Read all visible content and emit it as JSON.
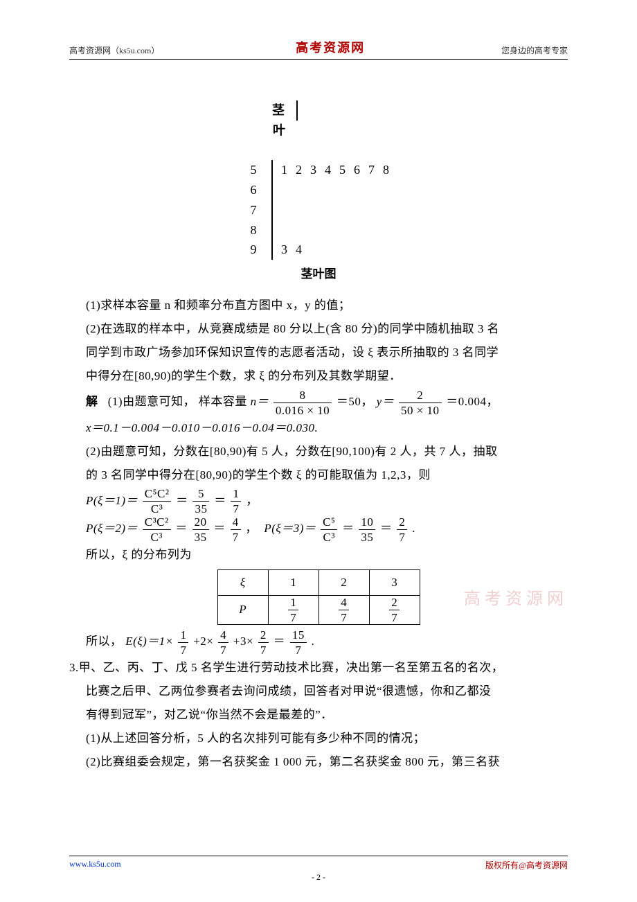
{
  "header": {
    "left": "高考资源网（ks5u.com）",
    "center": "高考资源网",
    "right": "您身边的高考专家"
  },
  "stemleaf": {
    "header_stem": "茎",
    "header_leaf": "叶",
    "rows": [
      {
        "stem": "5",
        "leaves": "12345678"
      },
      {
        "stem": "6",
        "leaves": ""
      },
      {
        "stem": "7",
        "leaves": ""
      },
      {
        "stem": "8",
        "leaves": ""
      },
      {
        "stem": "9",
        "leaves": "34"
      }
    ],
    "caption": "茎叶图"
  },
  "body": {
    "p1": "(1)求样本容量 n 和频率分布直方图中 x，y 的值；",
    "p2a": "(2)在选取的样本中，从竞赛成绩是 80 分以上(含 80 分)的同学中随机抽取 3 名",
    "p2b": "同学到市政广场参加环保知识宣传的志愿者活动，设 ξ 表示所抽取的 3 名同学",
    "p2c": "中得分在[80,90)的学生个数，求 ξ 的分布列及其数学期望．",
    "sol_label": "解",
    "sol1_pre": "(1)由题意可知，  样本容量 ",
    "n_eq": "n＝",
    "frac_n": {
      "num": "8",
      "den": "0.016 × 10"
    },
    "eq50": "＝50，",
    "y_eq": "y＝",
    "frac_y": {
      "num": "2",
      "den": "50 × 10"
    },
    "eq_y": "＝0.004，",
    "sol1_x": "x＝0.1－0.004－0.010－0.016－0.04＝0.030.",
    "sol2a": "(2)由题意可知，分数在[80,90)有 5 人，分数在[90,100)有 2 人，共 7 人，抽取",
    "sol2b": "的 3 名同学中得分在[80,90)的学生个数 ξ 的可能取值为 1,2,3，则",
    "P1_lhs": "P(ξ＝1)＝",
    "P1_f1": {
      "num": "C⁵C²",
      "den": "C³"
    },
    "P1_mid": "＝",
    "P1_f2": {
      "num": "5",
      "den": "35"
    },
    "P1_f3": {
      "num": "1",
      "den": "7"
    },
    "P1_end": "，",
    "P2_lhs": "P(ξ＝2)＝",
    "P2_f1": {
      "num": "C³C²",
      "den": "C³"
    },
    "P2_f2": {
      "num": "20",
      "den": "35"
    },
    "P2_f3": {
      "num": "4",
      "den": "7"
    },
    "P2_comma": "，",
    "P3_lhs": "P(ξ＝3)＝",
    "P3_f1": {
      "num": "C⁵",
      "den": "C³"
    },
    "P3_f2": {
      "num": "10",
      "den": "35"
    },
    "P3_f3": {
      "num": "2",
      "den": "7"
    },
    "P3_end": ".",
    "so_dist": "所以，ξ 的分布列为",
    "dist_header": [
      "ξ",
      "1",
      "2",
      "3"
    ],
    "dist_probs": [
      {
        "num": "1",
        "den": "7"
      },
      {
        "num": "4",
        "den": "7"
      },
      {
        "num": "2",
        "den": "7"
      }
    ],
    "dist_row_label": "P",
    "so_E_pre": "所以，",
    "E_lhs": "E(ξ)＝1×",
    "E_f1": {
      "num": "1",
      "den": "7"
    },
    "E_p2": "+2×",
    "E_f2": {
      "num": "4",
      "den": "7"
    },
    "E_p3": "+3×",
    "E_f3": {
      "num": "2",
      "den": "7"
    },
    "E_eq": "＝",
    "E_f4": {
      "num": "15",
      "den": "7"
    },
    "E_end": ".",
    "q3_num": "3.",
    "q3a": "甲、乙、丙、丁、戊 5 名学生进行劳动技术比赛，决出第一名至第五名的名次，",
    "q3b": "比赛之后甲、乙两位参赛者去询问成绩，回答者对甲说“很遗憾，你和乙都没",
    "q3c": "有得到冠军”，对乙说“你当然不会是最差的”．",
    "q3_1": "(1)从上述回答分析，5 人的名次排列可能有多少种不同的情况；",
    "q3_2": "(2)比赛组委会规定，第一名获奖金 1 000 元，第二名获奖金 800 元，第三名获"
  },
  "watermark": "高考资源网",
  "footer": {
    "left": "www.ks5u.com",
    "right": "版权所有@高考资源网",
    "page": "- 2 -"
  }
}
